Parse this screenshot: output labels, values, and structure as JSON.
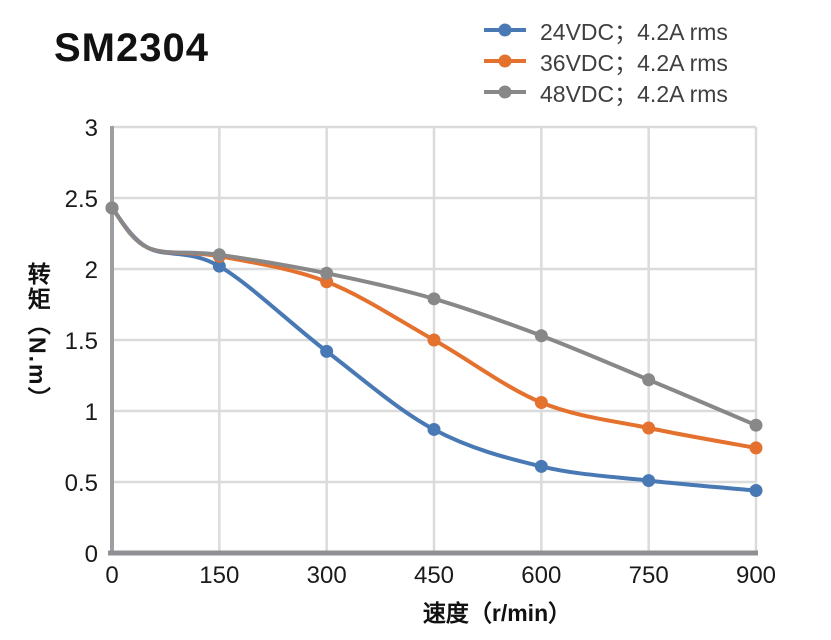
{
  "header": {
    "title": "SM2304"
  },
  "chart_data": {
    "type": "line",
    "title": "SM2304",
    "xlabel": "速度（r/min）",
    "ylabel": "转矩（N.m）",
    "xlim": [
      0,
      900
    ],
    "ylim": [
      0,
      3
    ],
    "grid": true,
    "legend_position": "top-right",
    "x_tick_labels": [
      "0",
      "150",
      "300",
      "450",
      "600",
      "750",
      "900"
    ],
    "y_tick_labels": [
      "0",
      "0.5",
      "1",
      "1.5",
      "2",
      "2.5",
      "3"
    ],
    "x": [
      0,
      50,
      150,
      300,
      450,
      600,
      750,
      900
    ],
    "marker_x": [
      0,
      150,
      300,
      450,
      600,
      750,
      900
    ],
    "series": [
      {
        "name": "24VDC；4.2A rms",
        "color": "#4879B5",
        "values": [
          2.43,
          2.15,
          2.02,
          1.42,
          0.87,
          0.61,
          0.51,
          0.44
        ]
      },
      {
        "name": "36VDC；4.2A rms",
        "color": "#E4712E",
        "values": [
          2.43,
          2.15,
          2.09,
          1.91,
          1.5,
          1.06,
          0.88,
          0.74
        ]
      },
      {
        "name": "48VDC；4.2A rms",
        "color": "#888888",
        "values": [
          2.43,
          2.15,
          2.1,
          1.97,
          1.79,
          1.53,
          1.22,
          0.9
        ]
      }
    ]
  },
  "colors": {
    "grid": "#DBDBDB",
    "axis_y": "#9B9EA3",
    "axis_x": "#909094",
    "tick_label": "#1A1A1A",
    "legend_text": "#3F3F3F",
    "title_text": "#111111"
  }
}
